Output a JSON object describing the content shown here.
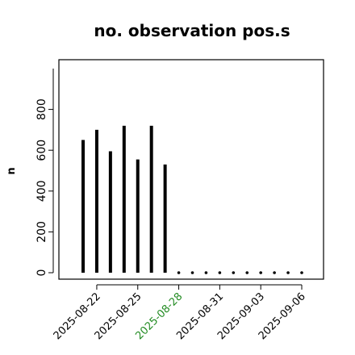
{
  "chart_data": {
    "type": "bar",
    "title": "no. observation pos.s",
    "ylabel": "n",
    "xlabel": "",
    "ylim": [
      0,
      1000
    ],
    "y_ticks": [
      0,
      200,
      400,
      600,
      800
    ],
    "x": [
      "2025-08-21",
      "2025-08-22",
      "2025-08-23",
      "2025-08-24",
      "2025-08-25",
      "2025-08-26",
      "2025-08-27",
      "2025-08-28",
      "2025-08-29",
      "2025-08-30",
      "2025-08-31",
      "2025-09-01",
      "2025-09-02",
      "2025-09-03",
      "2025-09-04",
      "2025-09-05",
      "2025-09-06"
    ],
    "values": [
      650,
      700,
      595,
      720,
      555,
      720,
      530,
      0,
      0,
      0,
      0,
      0,
      0,
      0,
      0,
      0,
      0
    ],
    "x_tick_labels": [
      {
        "date": "2025-08-22",
        "label": "2025-08-22",
        "color": "#000000"
      },
      {
        "date": "2025-08-25",
        "label": "2025-08-25",
        "color": "#000000"
      },
      {
        "date": "2025-08-28",
        "label": "2025-08-28",
        "color": "#228B22"
      },
      {
        "date": "2025-08-31",
        "label": "2025-08-31",
        "color": "#000000"
      },
      {
        "date": "2025-09-03",
        "label": "2025-09-03",
        "color": "#000000"
      },
      {
        "date": "2025-09-06",
        "label": "2025-09-06",
        "color": "#000000"
      }
    ],
    "grid": false,
    "bar_color": "#000000"
  }
}
